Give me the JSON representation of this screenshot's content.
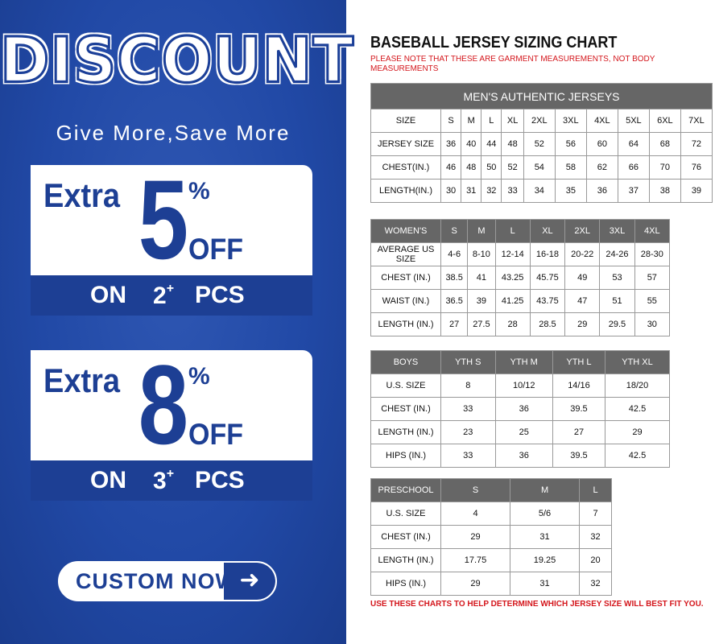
{
  "promo": {
    "headline": "DISCOUNT",
    "tagline": "Give More,Save More",
    "offers": [
      {
        "extra": "Extra",
        "percent_value": "5",
        "percent_sign": "%",
        "off": "OFF",
        "on": "ON",
        "qty": "2",
        "plus": "+",
        "pcs": "PCS"
      },
      {
        "extra": "Extra",
        "percent_value": "8",
        "percent_sign": "%",
        "off": "OFF",
        "on": "ON",
        "qty": "3",
        "plus": "+",
        "pcs": "PCS"
      }
    ],
    "cta_label": "CUSTOM NOW",
    "cta_icon": "arrow-right-icon",
    "colors": {
      "brand_blue": "#1d3f94",
      "panel_blue": "#2149a6"
    }
  },
  "chart": {
    "title": "BASEBALL JERSEY SIZING CHART",
    "note": "PLEASE NOTE THAT THESE ARE GARMENT MEASUREMENTS, NOT BODY MEASUREMENTS",
    "footer": "USE THESE CHARTS TO HELP DETERMINE WHICH JERSEY SIZE WILL BEST FIT YOU.",
    "tables": [
      {
        "caption": "MEN'S AUTHENTIC JERSEYS",
        "header": [
          "SIZE",
          "S",
          "M",
          "L",
          "XL",
          "2XL",
          "3XL",
          "4XL",
          "5XL",
          "6XL",
          "7XL"
        ],
        "rows": [
          [
            "JERSEY SIZE",
            "36",
            "40",
            "44",
            "48",
            "52",
            "56",
            "60",
            "64",
            "68",
            "72"
          ],
          [
            "CHEST(IN.)",
            "46",
            "48",
            "50",
            "52",
            "54",
            "58",
            "62",
            "66",
            "70",
            "76"
          ],
          [
            "LENGTH(IN.)",
            "30",
            "31",
            "32",
            "33",
            "34",
            "35",
            "36",
            "37",
            "38",
            "39"
          ]
        ]
      },
      {
        "header": [
          "WOMEN'S",
          "S",
          "M",
          "L",
          "XL",
          "2XL",
          "3XL",
          "4XL"
        ],
        "rows": [
          [
            "AVERAGE US SIZE",
            "4-6",
            "8-10",
            "12-14",
            "16-18",
            "20-22",
            "24-26",
            "28-30"
          ],
          [
            "CHEST (IN.)",
            "38.5",
            "41",
            "43.25",
            "45.75",
            "49",
            "53",
            "57"
          ],
          [
            "WAIST (IN.)",
            "36.5",
            "39",
            "41.25",
            "43.75",
            "47",
            "51",
            "55"
          ],
          [
            "LENGTH (IN.)",
            "27",
            "27.5",
            "28",
            "28.5",
            "29",
            "29.5",
            "30"
          ]
        ]
      },
      {
        "header": [
          "BOYS",
          "YTH S",
          "YTH M",
          "YTH L",
          "YTH XL"
        ],
        "rows": [
          [
            "U.S. SIZE",
            "8",
            "10/12",
            "14/16",
            "18/20"
          ],
          [
            "CHEST (IN.)",
            "33",
            "36",
            "39.5",
            "42.5"
          ],
          [
            "LENGTH (IN.)",
            "23",
            "25",
            "27",
            "29"
          ],
          [
            "HIPS (IN.)",
            "33",
            "36",
            "39.5",
            "42.5"
          ]
        ]
      },
      {
        "header": [
          "PRESCHOOL",
          "S",
          "M",
          "L"
        ],
        "rows": [
          [
            "U.S. SIZE",
            "4",
            "5/6",
            "7"
          ],
          [
            "CHEST (IN.)",
            "29",
            "31",
            "32"
          ],
          [
            "LENGTH (IN.)",
            "17.75",
            "19.25",
            "20"
          ],
          [
            "HIPS (IN.)",
            "29",
            "31",
            "32"
          ]
        ]
      }
    ]
  }
}
